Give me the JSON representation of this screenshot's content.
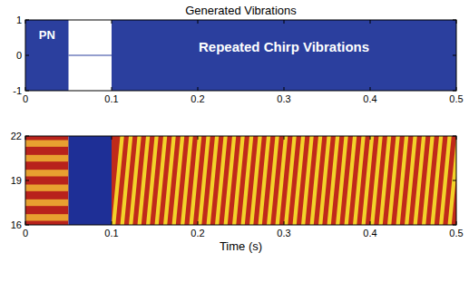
{
  "chart_data": [
    {
      "type": "envelope",
      "title": "Generated Vibrations",
      "color": "#2b3f9e",
      "xlim": [
        0,
        0.5
      ],
      "ylim": [
        -1,
        1
      ],
      "xticks": [
        0,
        0.1,
        0.2,
        0.3,
        0.4,
        0.5
      ],
      "yticks": [
        -1,
        0,
        1
      ],
      "segments": [
        {
          "label": "PN",
          "x": [
            0,
            0.05
          ],
          "y": [
            -1,
            1
          ]
        },
        {
          "x": [
            0.05,
            0.1
          ],
          "y": [
            0,
            0
          ]
        },
        {
          "label": "Repeated Chirp Vibrations",
          "x": [
            0.1,
            0.5
          ],
          "y": [
            -1,
            1
          ]
        }
      ]
    },
    {
      "type": "spectrogram",
      "x_label": "Time (s)",
      "xlim": [
        0,
        0.5
      ],
      "ylim": [
        16,
        22
      ],
      "xticks": [
        0,
        0.1,
        0.2,
        0.3,
        0.4,
        0.5
      ],
      "yticks": [
        16,
        19,
        22
      ],
      "pn": {
        "x": [
          0,
          0.05
        ],
        "bands": [
          16.5,
          17.5,
          18.5,
          19.5,
          20.5,
          21.5
        ]
      },
      "silence": {
        "x": [
          0.05,
          0.1
        ]
      },
      "chirps": {
        "x": [
          0.1,
          0.5
        ],
        "f": [
          16,
          22
        ],
        "period": 0.01,
        "starts": [
          0.1,
          0.11,
          0.12,
          0.13,
          0.14,
          0.15,
          0.16,
          0.17,
          0.18,
          0.19,
          0.2,
          0.21,
          0.22,
          0.23,
          0.24,
          0.25,
          0.26,
          0.27,
          0.28,
          0.29,
          0.3,
          0.31,
          0.32,
          0.33,
          0.34,
          0.35,
          0.36,
          0.37,
          0.38,
          0.39,
          0.4,
          0.41,
          0.42,
          0.43,
          0.44,
          0.45,
          0.46,
          0.47,
          0.48,
          0.49
        ]
      }
    }
  ]
}
